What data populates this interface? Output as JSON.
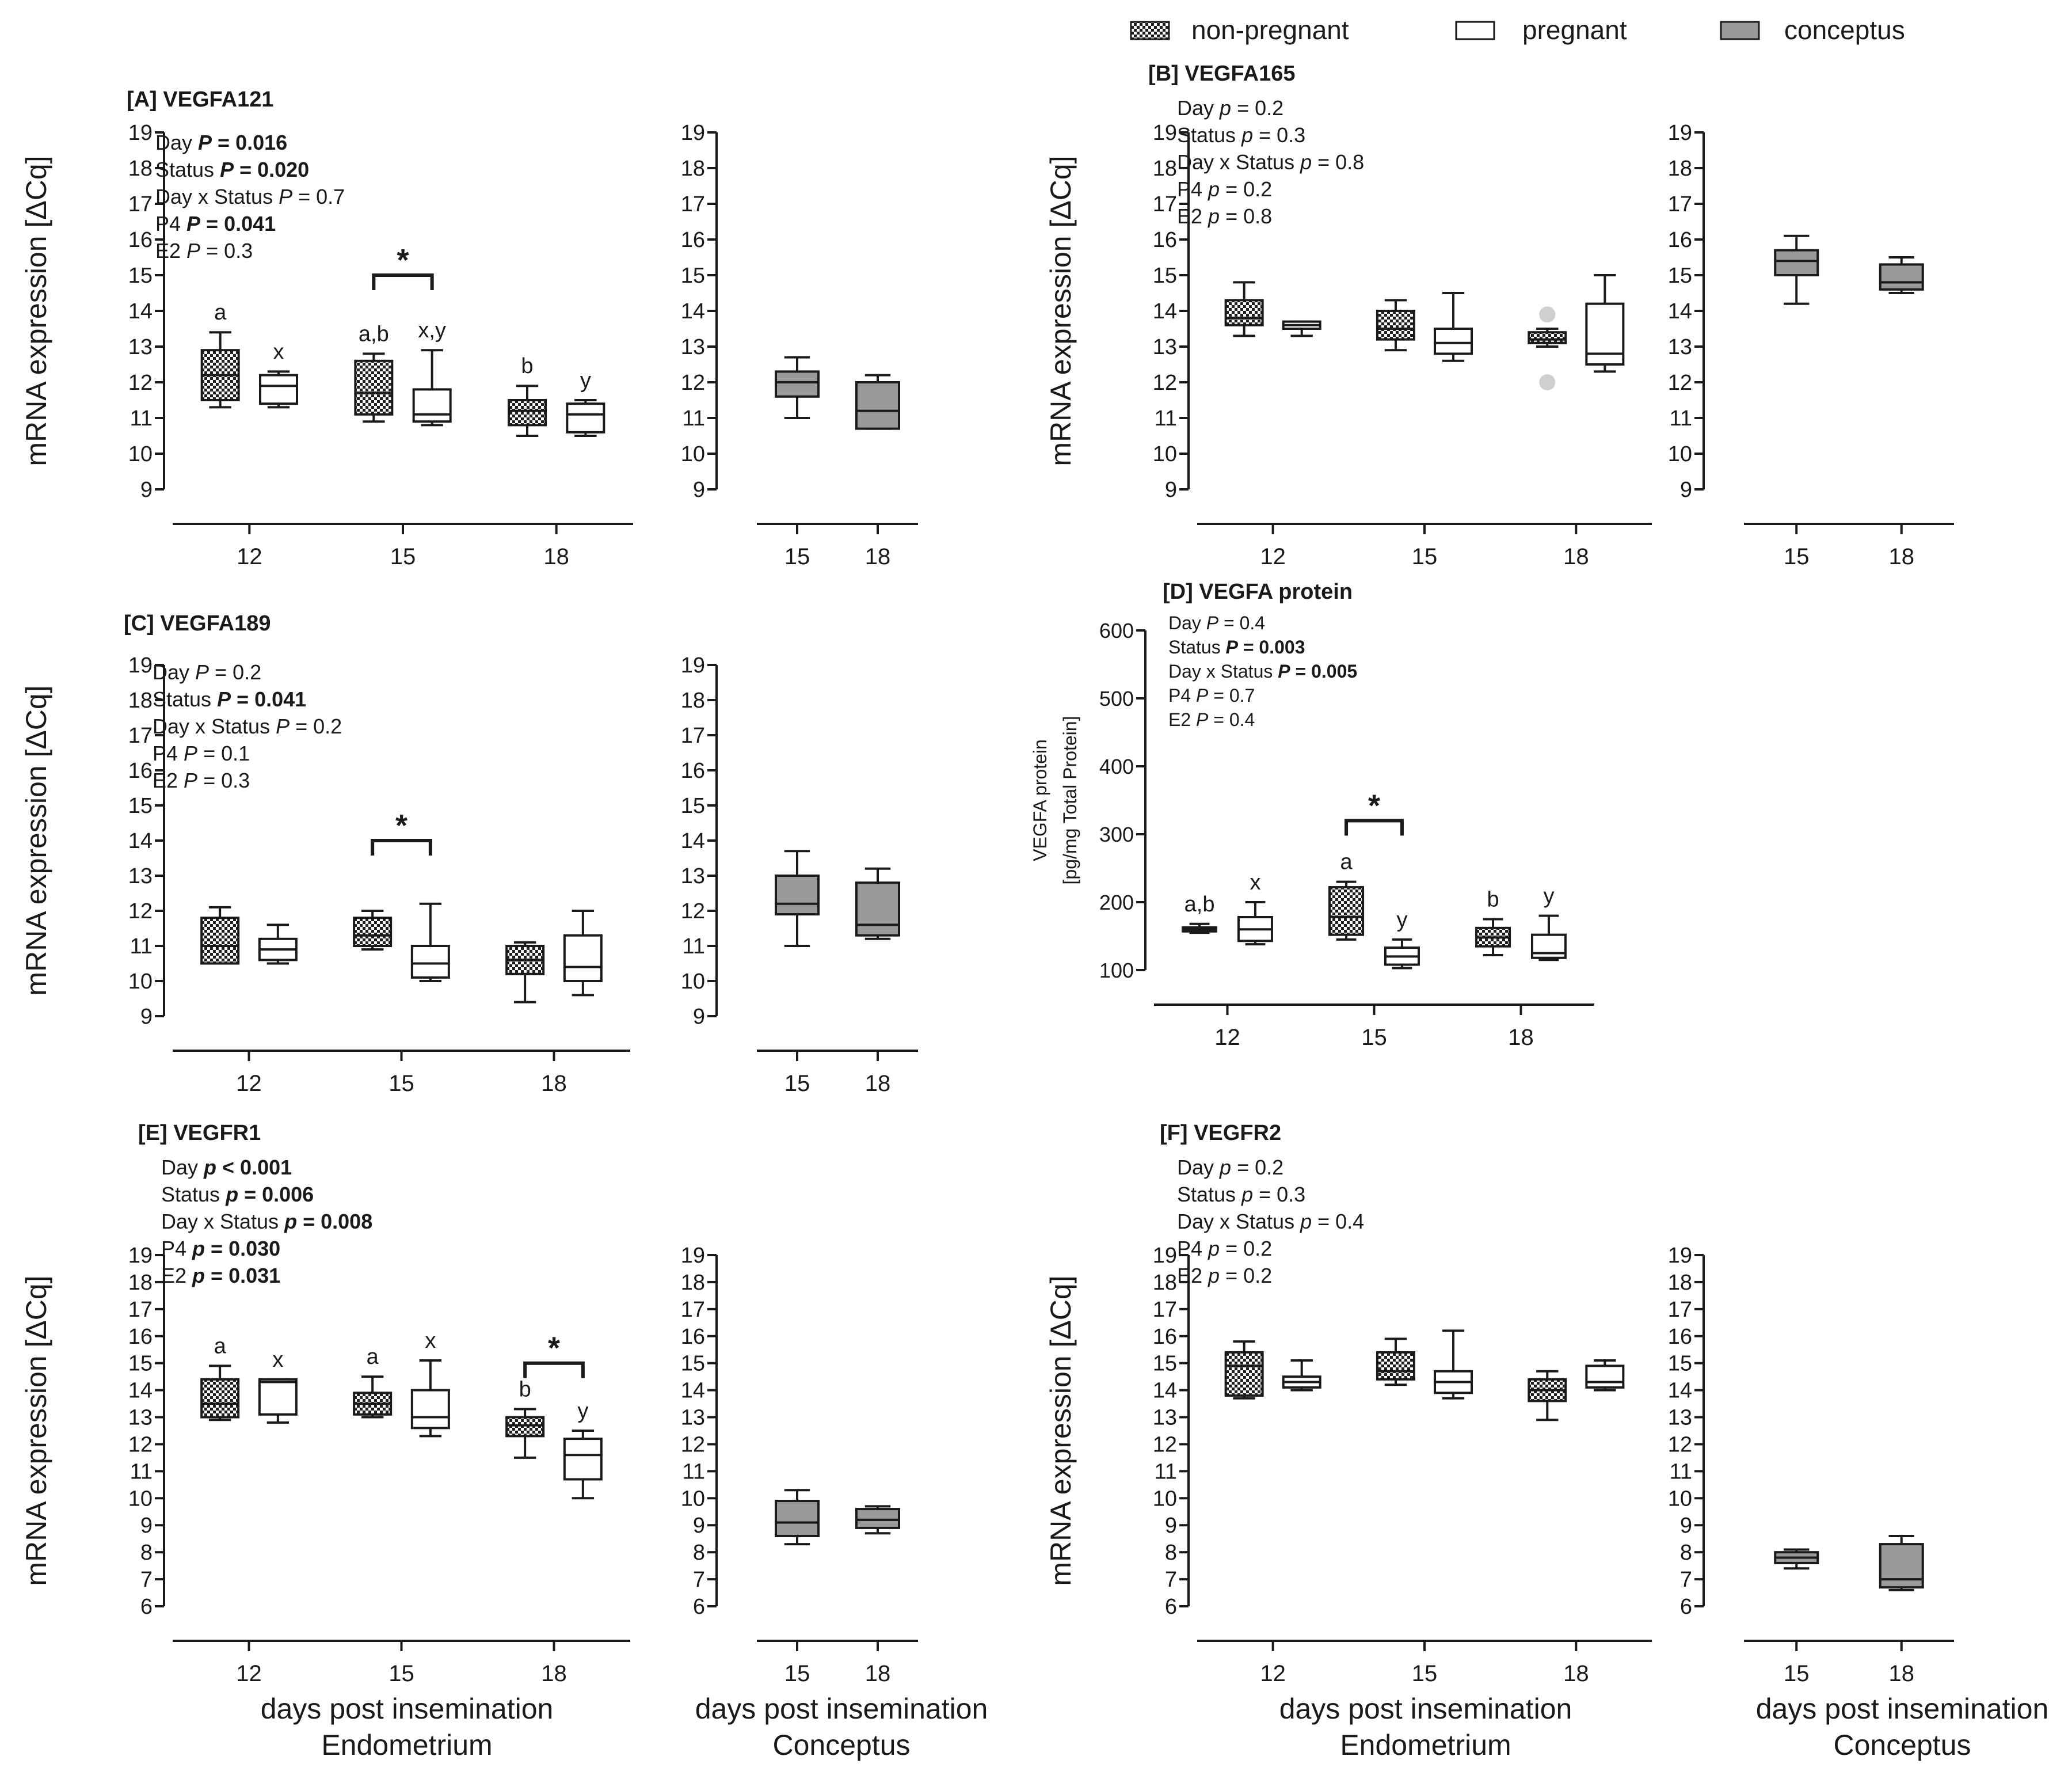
{
  "legend": [
    {
      "name": "non-pregnant",
      "style": "hatch"
    },
    {
      "name": "pregnant",
      "style": "white"
    },
    {
      "name": "conceptus",
      "style": "gray"
    }
  ],
  "colors": {
    "gray_fill": "#9a9a9a",
    "outlier": "#cfcfcf",
    "ink": "#1a1a1a"
  },
  "figure_labels": {
    "x_caption": "days post insemination",
    "endometrium": "Endometrium",
    "conceptus": "Conceptus",
    "star": "*"
  },
  "chart_data": [
    {
      "id": "A",
      "type": "box",
      "title": "[A] VEGFA121",
      "ylabel": "mRNA expression [ΔCq]",
      "ylim": [
        9,
        19
      ],
      "yticks": [
        "9",
        "10",
        "11",
        "12",
        "13",
        "14",
        "15",
        "16",
        "17",
        "18",
        "19"
      ],
      "stats": [
        {
          "label": "Day",
          "sym": "P",
          "rel": "=",
          "val": "0.016",
          "bold": true
        },
        {
          "label": "Status",
          "sym": "P",
          "rel": "=",
          "val": "0.020",
          "bold": true
        },
        {
          "label": "Day x Status",
          "sym": "P",
          "rel": "=",
          "val": "0.7",
          "bold": false
        },
        {
          "label": "P4",
          "sym": "P",
          "rel": "=",
          "val": "0.041",
          "bold": true
        },
        {
          "label": "E2",
          "sym": "P",
          "rel": "=",
          "val": "0.3",
          "bold": false
        }
      ],
      "categories": [
        "12",
        "15",
        "18"
      ],
      "series": [
        {
          "name": "non-pregnant",
          "boxes": [
            [
              11.3,
              11.5,
              12.2,
              12.9,
              13.4
            ],
            [
              10.9,
              11.1,
              11.7,
              12.6,
              12.8
            ],
            [
              10.5,
              10.8,
              11.2,
              11.5,
              11.9
            ]
          ],
          "labels": [
            "a",
            "a,b",
            "b"
          ]
        },
        {
          "name": "pregnant",
          "boxes": [
            [
              11.3,
              11.4,
              11.9,
              12.2,
              12.3
            ],
            [
              10.8,
              10.9,
              11.1,
              11.8,
              12.9
            ],
            [
              10.5,
              10.6,
              11.1,
              11.4,
              11.5
            ]
          ],
          "labels": [
            "x",
            "x,y",
            "y"
          ]
        }
      ],
      "significance": [
        {
          "category": "15",
          "value": 15.0
        }
      ],
      "conceptus": {
        "categories": [
          "15",
          "18"
        ],
        "boxes": [
          [
            11.0,
            11.6,
            12.0,
            12.3,
            12.7
          ],
          [
            10.7,
            10.7,
            11.2,
            12.0,
            12.2
          ]
        ]
      }
    },
    {
      "id": "B",
      "type": "box",
      "title": "[B] VEGFA165",
      "ylabel": "mRNA expression [ΔCq]",
      "ylim": [
        9,
        19
      ],
      "yticks": [
        "9",
        "10",
        "11",
        "12",
        "13",
        "14",
        "15",
        "16",
        "17",
        "18",
        "19"
      ],
      "stats": [
        {
          "label": "Day",
          "sym": "p",
          "rel": "=",
          "val": "0.2",
          "bold": false
        },
        {
          "label": "Status",
          "sym": "p",
          "rel": "=",
          "val": "0.3",
          "bold": false
        },
        {
          "label": "Day x Status",
          "sym": "p",
          "rel": "=",
          "val": "0.8",
          "bold": false
        },
        {
          "label": "P4",
          "sym": "p",
          "rel": "=",
          "val": "0.2",
          "bold": false
        },
        {
          "label": "E2",
          "sym": "p",
          "rel": "=",
          "val": "0.8",
          "bold": false
        }
      ],
      "categories": [
        "12",
        "15",
        "18"
      ],
      "series": [
        {
          "name": "non-pregnant",
          "boxes": [
            [
              13.3,
              13.6,
              13.8,
              14.3,
              14.8
            ],
            [
              12.9,
              13.2,
              13.5,
              14.0,
              14.3
            ],
            [
              13.0,
              13.1,
              13.2,
              13.4,
              13.5
            ]
          ],
          "labels": [
            "",
            "",
            ""
          ]
        },
        {
          "name": "pregnant",
          "boxes": [
            [
              13.3,
              13.5,
              13.6,
              13.7,
              13.7
            ],
            [
              12.6,
              12.8,
              13.1,
              13.5,
              14.5
            ],
            [
              12.3,
              12.5,
              12.8,
              14.2,
              15.0
            ]
          ],
          "labels": [
            "",
            "",
            ""
          ]
        }
      ],
      "outliers": [
        {
          "series": 0,
          "category": "18",
          "values": [
            13.9,
            12.0
          ]
        }
      ],
      "significance": [],
      "conceptus": {
        "categories": [
          "15",
          "18"
        ],
        "boxes": [
          [
            14.2,
            15.0,
            15.4,
            15.7,
            16.1
          ],
          [
            14.5,
            14.6,
            14.8,
            15.3,
            15.5
          ]
        ]
      }
    },
    {
      "id": "C",
      "type": "box",
      "title": "[C] VEGFA189",
      "ylabel": "mRNA expression [ΔCq]",
      "ylim": [
        9,
        19
      ],
      "yticks": [
        "9",
        "10",
        "11",
        "12",
        "13",
        "14",
        "15",
        "16",
        "17",
        "18",
        "19"
      ],
      "stats": [
        {
          "label": "Day",
          "sym": "P",
          "rel": "=",
          "val": "0.2",
          "bold": false
        },
        {
          "label": "Status",
          "sym": "P",
          "rel": "=",
          "val": "0.041",
          "bold": true
        },
        {
          "label": "Day x Status",
          "sym": "P",
          "rel": "=",
          "val": "0.2",
          "bold": false
        },
        {
          "label": "P4",
          "sym": "P",
          "rel": "=",
          "val": "0.1",
          "bold": false
        },
        {
          "label": "E2",
          "sym": "P",
          "rel": "=",
          "val": "0.3",
          "bold": false
        }
      ],
      "categories": [
        "12",
        "15",
        "18"
      ],
      "series": [
        {
          "name": "non-pregnant",
          "boxes": [
            [
              10.5,
              10.5,
              11.0,
              11.8,
              12.1
            ],
            [
              10.9,
              11.0,
              11.3,
              11.8,
              12.0
            ],
            [
              9.4,
              10.2,
              10.6,
              11.0,
              11.1
            ]
          ],
          "labels": [
            "",
            "",
            ""
          ]
        },
        {
          "name": "pregnant",
          "boxes": [
            [
              10.5,
              10.6,
              10.9,
              11.2,
              11.6
            ],
            [
              10.0,
              10.1,
              10.5,
              11.0,
              12.2
            ],
            [
              9.6,
              10.0,
              10.4,
              11.3,
              12.0
            ]
          ],
          "labels": [
            "",
            "",
            ""
          ]
        }
      ],
      "significance": [
        {
          "category": "15",
          "value": 14.0
        }
      ],
      "conceptus": {
        "categories": [
          "15",
          "18"
        ],
        "boxes": [
          [
            11.0,
            11.9,
            12.2,
            13.0,
            13.7
          ],
          [
            11.2,
            11.3,
            11.6,
            12.8,
            13.2
          ]
        ]
      }
    },
    {
      "id": "D",
      "type": "box",
      "title": "[D] VEGFA protein",
      "ylabel": "VEGFA protein",
      "ylabel2": "[pg/mg Total Protein]",
      "ylim": [
        100,
        600
      ],
      "yticks": [
        "100",
        "200",
        "300",
        "400",
        "500",
        "600"
      ],
      "stats": [
        {
          "label": "Day",
          "sym": "P",
          "rel": "=",
          "val": "0.4",
          "bold": false
        },
        {
          "label": "Status",
          "sym": "P",
          "rel": "=",
          "val": "0.003",
          "bold": true
        },
        {
          "label": "Day x Status",
          "sym": "P",
          "rel": "=",
          "val": "0.005",
          "bold": true
        },
        {
          "label": "P4",
          "sym": "P",
          "rel": "=",
          "val": "0.7",
          "bold": false
        },
        {
          "label": "E2",
          "sym": "P",
          "rel": "=",
          "val": "0.4",
          "bold": false
        }
      ],
      "categories": [
        "12",
        "15",
        "18"
      ],
      "series": [
        {
          "name": "non-pregnant",
          "boxes": [
            [
              155,
              157,
              160,
              163,
              168
            ],
            [
              145,
              152,
              178,
              222,
              230
            ],
            [
              122,
              135,
              148,
              162,
              175
            ]
          ],
          "labels": [
            "a,b",
            "a",
            "b"
          ]
        },
        {
          "name": "pregnant",
          "boxes": [
            [
              138,
              143,
              160,
              178,
              200
            ],
            [
              103,
              108,
              120,
              133,
              145
            ],
            [
              115,
              118,
              125,
              152,
              180
            ]
          ],
          "labels": [
            "x",
            "y",
            "y"
          ]
        }
      ],
      "significance": [
        {
          "category": "15",
          "value": 320
        }
      ],
      "conceptus": null
    },
    {
      "id": "E",
      "type": "box",
      "title": "[E] VEGFR1",
      "ylabel": "mRNA expression [ΔCq]",
      "ylim": [
        6,
        19
      ],
      "yticks": [
        "6",
        "7",
        "8",
        "9",
        "10",
        "11",
        "12",
        "13",
        "14",
        "15",
        "16",
        "17",
        "18",
        "19"
      ],
      "stats": [
        {
          "label": "Day",
          "sym": "p",
          "rel": "<",
          "val": "0.001",
          "bold": true
        },
        {
          "label": "Status",
          "sym": "p",
          "rel": "=",
          "val": "0.006",
          "bold": true
        },
        {
          "label": "Day x Status",
          "sym": "p",
          "rel": "=",
          "val": "0.008",
          "bold": true
        },
        {
          "label": "P4",
          "sym": "p",
          "rel": "=",
          "val": "0.030",
          "bold": true
        },
        {
          "label": "E2",
          "sym": "p",
          "rel": "=",
          "val": "0.031",
          "bold": true
        }
      ],
      "categories": [
        "12",
        "15",
        "18"
      ],
      "series": [
        {
          "name": "non-pregnant",
          "boxes": [
            [
              12.9,
              13.0,
              13.5,
              14.4,
              14.9
            ],
            [
              13.0,
              13.1,
              13.5,
              13.9,
              14.5
            ],
            [
              11.5,
              12.3,
              12.7,
              13.0,
              13.3
            ]
          ],
          "labels": [
            "a",
            "a",
            "b"
          ]
        },
        {
          "name": "pregnant",
          "boxes": [
            [
              12.8,
              13.1,
              14.3,
              14.4,
              14.4
            ],
            [
              12.3,
              12.6,
              13.0,
              14.0,
              15.1
            ],
            [
              10.0,
              10.7,
              11.6,
              12.2,
              12.5
            ]
          ],
          "labels": [
            "x",
            "x",
            "y"
          ]
        }
      ],
      "significance": [
        {
          "category": "18",
          "value": 15.0
        }
      ],
      "conceptus": {
        "categories": [
          "15",
          "18"
        ],
        "boxes": [
          [
            8.3,
            8.6,
            9.1,
            9.9,
            10.3
          ],
          [
            8.7,
            8.9,
            9.2,
            9.6,
            9.7
          ]
        ]
      }
    },
    {
      "id": "F",
      "type": "box",
      "title": "[F] VEGFR2",
      "ylabel": "mRNA expression [ΔCq]",
      "ylim": [
        6,
        19
      ],
      "yticks": [
        "6",
        "7",
        "8",
        "9",
        "10",
        "11",
        "12",
        "13",
        "14",
        "15",
        "16",
        "17",
        "18",
        "19"
      ],
      "stats": [
        {
          "label": "Day",
          "sym": "p",
          "rel": "=",
          "val": "0.2",
          "bold": false
        },
        {
          "label": "Status",
          "sym": "p",
          "rel": "=",
          "val": "0.3",
          "bold": false
        },
        {
          "label": "Day x Status",
          "sym": "p",
          "rel": "=",
          "val": "0.4",
          "bold": false
        },
        {
          "label": "P4",
          "sym": "p",
          "rel": "=",
          "val": "0.2",
          "bold": false
        },
        {
          "label": "E2",
          "sym": "p",
          "rel": "=",
          "val": "0.2",
          "bold": false
        }
      ],
      "categories": [
        "12",
        "15",
        "18"
      ],
      "series": [
        {
          "name": "non-pregnant",
          "boxes": [
            [
              13.7,
              13.8,
              14.9,
              15.4,
              15.8
            ],
            [
              14.2,
              14.4,
              14.7,
              15.4,
              15.9
            ],
            [
              12.9,
              13.6,
              14.0,
              14.4,
              14.7
            ]
          ],
          "labels": [
            "",
            "",
            ""
          ]
        },
        {
          "name": "pregnant",
          "boxes": [
            [
              14.0,
              14.1,
              14.3,
              14.5,
              15.1
            ],
            [
              13.7,
              13.9,
              14.3,
              14.7,
              16.2
            ],
            [
              14.0,
              14.1,
              14.3,
              14.9,
              15.1
            ]
          ],
          "labels": [
            "",
            "",
            ""
          ]
        }
      ],
      "significance": [],
      "conceptus": {
        "categories": [
          "15",
          "18"
        ],
        "boxes": [
          [
            7.4,
            7.6,
            7.8,
            8.0,
            8.1
          ],
          [
            6.6,
            6.7,
            7.0,
            8.3,
            8.6
          ]
        ]
      }
    }
  ]
}
